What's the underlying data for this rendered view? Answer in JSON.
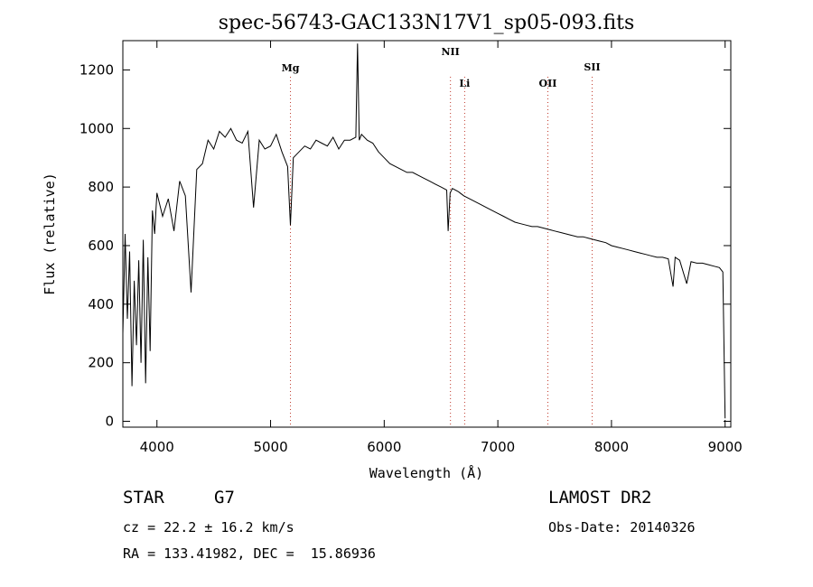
{
  "chart_data": {
    "type": "line",
    "title": "spec-56743-GAC133N17V1_sp05-093.fits",
    "xlabel": "Wavelength (Å)",
    "ylabel": "Flux (relative)",
    "xlim": [
      3700,
      9050
    ],
    "ylim": [
      -20,
      1300
    ],
    "xticks": [
      4000,
      5000,
      6000,
      7000,
      8000,
      9000
    ],
    "yticks": [
      0,
      200,
      400,
      600,
      800,
      1000,
      1200
    ],
    "grid": false,
    "series": [
      {
        "x": [
          3700,
          3720,
          3740,
          3760,
          3780,
          3800,
          3820,
          3840,
          3860,
          3880,
          3900,
          3920,
          3940,
          3960,
          3980,
          4000,
          4050,
          4100,
          4150,
          4200,
          4250,
          4300,
          4350,
          4400,
          4450,
          4500,
          4550,
          4600,
          4650,
          4700,
          4750,
          4800,
          4850,
          4900,
          4950,
          5000,
          5050,
          5100,
          5150,
          5175,
          5200,
          5250,
          5300,
          5350,
          5400,
          5450,
          5500,
          5550,
          5600,
          5650,
          5700,
          5750,
          5765,
          5780,
          5800,
          5850,
          5900,
          5950,
          6000,
          6050,
          6100,
          6150,
          6200,
          6250,
          6300,
          6350,
          6400,
          6450,
          6500,
          6550,
          6563,
          6580,
          6600,
          6650,
          6700,
          6750,
          6800,
          6850,
          6900,
          6950,
          7000,
          7050,
          7100,
          7150,
          7200,
          7250,
          7300,
          7350,
          7400,
          7450,
          7500,
          7550,
          7600,
          7650,
          7700,
          7750,
          7800,
          7850,
          7900,
          7950,
          8000,
          8050,
          8100,
          8150,
          8200,
          8250,
          8300,
          8350,
          8400,
          8450,
          8500,
          8542,
          8560,
          8600,
          8662,
          8700,
          8750,
          8800,
          8850,
          8900,
          8950,
          8980,
          9000
        ],
        "y": [
          300,
          640,
          350,
          580,
          120,
          480,
          260,
          550,
          200,
          620,
          130,
          560,
          240,
          720,
          640,
          780,
          700,
          760,
          650,
          820,
          770,
          440,
          860,
          880,
          960,
          930,
          990,
          970,
          1000,
          960,
          950,
          990,
          730,
          960,
          930,
          940,
          980,
          920,
          870,
          670,
          900,
          920,
          940,
          930,
          960,
          950,
          940,
          970,
          930,
          960,
          960,
          970,
          1290,
          960,
          980,
          960,
          950,
          920,
          900,
          880,
          870,
          860,
          850,
          850,
          840,
          830,
          820,
          810,
          800,
          790,
          650,
          780,
          795,
          785,
          770,
          760,
          750,
          740,
          730,
          720,
          710,
          700,
          690,
          680,
          675,
          670,
          665,
          665,
          660,
          655,
          650,
          645,
          640,
          635,
          630,
          630,
          625,
          620,
          615,
          610,
          600,
          595,
          590,
          585,
          580,
          575,
          570,
          565,
          560,
          560,
          555,
          460,
          560,
          550,
          470,
          545,
          540,
          540,
          535,
          530,
          525,
          510,
          10
        ]
      }
    ],
    "annotations": [
      {
        "label": "Mg",
        "x": 5175
      },
      {
        "label": "NII",
        "x": 6583
      },
      {
        "label": "Li",
        "x": 6708
      },
      {
        "label": "OII",
        "x": 7440
      },
      {
        "label": "SII",
        "x": 7830
      }
    ]
  },
  "info": {
    "class": "STAR",
    "subclass": "G7",
    "survey": "LAMOST DR2",
    "cz": "cz = 22.2 ± 16.2 km/s",
    "obsdate": "Obs-Date: 20140326",
    "radec": "RA = 133.41982, DEC =  15.86936"
  }
}
